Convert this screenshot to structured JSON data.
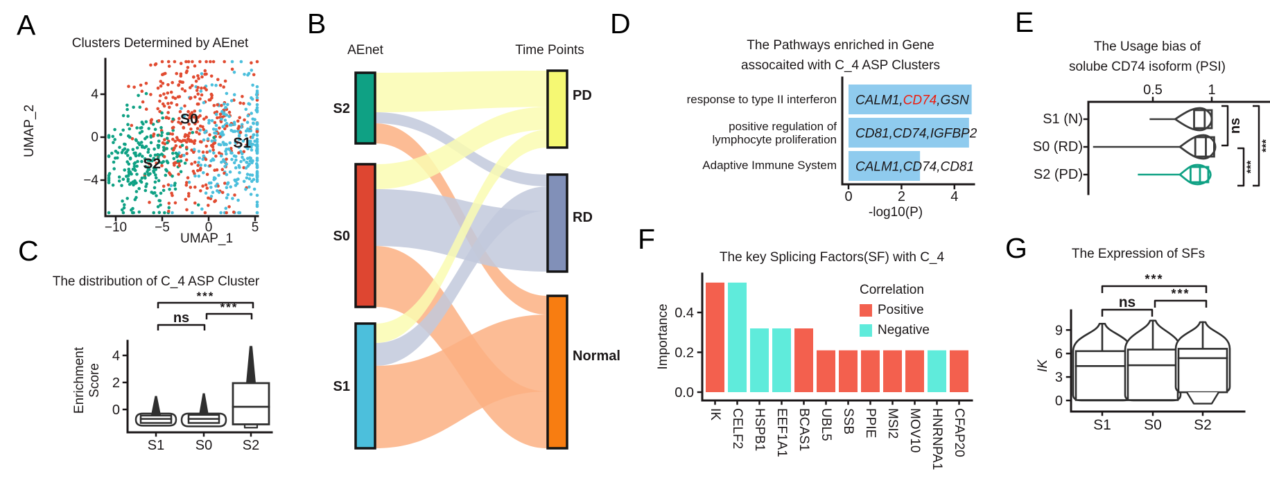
{
  "figure": {
    "background": "#ffffff",
    "ink": "#1b1718"
  },
  "chart_data": [
    {
      "id": "A",
      "type": "scatter",
      "letter": "A",
      "title": "Clusters Determined by AEnet",
      "xlabel": "UMAP_1",
      "ylabel": "UMAP_2",
      "xticks": [
        -10,
        -5,
        0,
        5
      ],
      "yticks": [
        4,
        0,
        -4
      ],
      "xlim": [
        -11.5,
        5.5
      ],
      "ylim": [
        -7.5,
        7.5
      ],
      "clusters": [
        {
          "name": "S0",
          "color": "#E14B31",
          "n": 340,
          "center": [
            -1.6,
            0.85
          ],
          "sd": [
            3.1,
            3.5
          ],
          "label_at": [
            -2.1,
            1.7
          ]
        },
        {
          "name": "S1",
          "color": "#4CBFDC",
          "n": 300,
          "center": [
            2.8,
            -0.9
          ],
          "sd": [
            2.7,
            3.1
          ],
          "label_at": [
            3.6,
            -0.5
          ]
        },
        {
          "name": "S2",
          "color": "#0FA184",
          "n": 240,
          "center": [
            -6.9,
            -2.3
          ],
          "sd": [
            2.2,
            2.6
          ],
          "label_at": [
            -6.1,
            -2.45
          ]
        }
      ]
    },
    {
      "id": "B",
      "type": "sankey",
      "letter": "B",
      "left_header": "AEnet",
      "right_header": "Time Points",
      "left_nodes": [
        {
          "name": "S2",
          "color": "#0FA184"
        },
        {
          "name": "S0",
          "color": "#DE4631"
        },
        {
          "name": "S1",
          "color": "#4CBFDC"
        }
      ],
      "right_nodes": [
        {
          "name": "PD",
          "color": "#F5F873"
        },
        {
          "name": "RD",
          "color": "#8190B8"
        },
        {
          "name": "Normal",
          "color": "#F87D11"
        }
      ],
      "links": [
        {
          "source": "S2",
          "target": "PD",
          "value": 57
        },
        {
          "source": "S2",
          "target": "RD",
          "value": 16
        },
        {
          "source": "S2",
          "target": "Normal",
          "value": 29
        },
        {
          "source": "S0",
          "target": "PD",
          "value": 36
        },
        {
          "source": "S0",
          "target": "RD",
          "value": 82
        },
        {
          "source": "S0",
          "target": "Normal",
          "value": 88
        },
        {
          "source": "S1",
          "target": "PD",
          "value": 28
        },
        {
          "source": "S1",
          "target": "RD",
          "value": 33
        },
        {
          "source": "S1",
          "target": "Normal",
          "value": 119
        }
      ],
      "flow_colors": {
        "PD": "#FAFBB1",
        "RD": "#C2C9DC",
        "Normal": "#FBB083"
      },
      "target_order": {
        "PD": [
          "S2",
          "S0",
          "S1"
        ],
        "RD": [
          "S2",
          "S1",
          "S0"
        ],
        "Normal": [
          "S2",
          "S1",
          "S0"
        ]
      }
    },
    {
      "id": "C",
      "type": "violin-box",
      "letter": "C",
      "title": "The distribution of C_4 ASP Cluster",
      "ylabel_line1": "Enrichment",
      "ylabel_line2": "Score",
      "yticks": [
        4,
        2,
        0
      ],
      "categories": [
        "S1",
        "S0",
        "S2"
      ],
      "stats": [
        {
          "group": "S1",
          "lo": -1.2,
          "hi": -0.3,
          "q1": -1.0,
          "median": -0.7,
          "q3": -0.45,
          "whisker_high": 1.0
        },
        {
          "group": "S0",
          "lo": -1.25,
          "hi": -0.3,
          "q1": -1.0,
          "median": -0.7,
          "q3": -0.4,
          "whisker_high": 1.2
        },
        {
          "group": "S2",
          "lo": -1.35,
          "hi": 1.95,
          "q1": -1.1,
          "median": 0.2,
          "q3": 1.95,
          "whisker_high": 4.7
        }
      ],
      "significance": [
        {
          "label": "***",
          "from": "S1",
          "to": "S2"
        },
        {
          "label": "***",
          "from": "S0",
          "to": "S2"
        },
        {
          "label": "ns",
          "from": "S1",
          "to": "S0"
        }
      ]
    },
    {
      "id": "D",
      "type": "bar-h",
      "letter": "D",
      "title_line1": "The Pathways enriched in Gene",
      "title_line2": "assocaited with C_4 ASP Clusters",
      "xlabel": "-log10(P)",
      "xticks": [
        0,
        2,
        4
      ],
      "bar_color": "#8FCBEE",
      "rows": [
        {
          "label_lines": [
            "response to type II interferon"
          ],
          "value": 4.65,
          "genes": [
            {
              "text": "CALM1,",
              "color": "#1b1718"
            },
            {
              "text": "CD74",
              "color": "#ED1B0C"
            },
            {
              "text": ",GSN",
              "color": "#1b1718"
            }
          ]
        },
        {
          "label_lines": [
            "positive regulation of",
            "lymphocyte proliferation"
          ],
          "value": 4.55,
          "genes": [
            {
              "text": "CD81,CD74,IGFBP2",
              "color": "#1b1718"
            }
          ]
        },
        {
          "label_lines": [
            "Adaptive Immune System"
          ],
          "value": 2.7,
          "genes": [
            {
              "text": "CALM1,CD74,CD81",
              "color": "#1b1718"
            }
          ]
        }
      ]
    },
    {
      "id": "E",
      "type": "violin-h",
      "letter": "E",
      "title_line1": "The Usage bias of",
      "title_line2": "solube CD74 isoform (PSI)",
      "xticks": [
        "0.5",
        "1"
      ],
      "rows": [
        {
          "label": "S1 (N)",
          "color": "#3a3a3a",
          "tail_min": 0.48,
          "body_lo": 0.69,
          "peak": 0.9,
          "body_hi": 1.0,
          "q1": 0.85,
          "median": 0.94,
          "q3": 1.0
        },
        {
          "label": "S0 (RD)",
          "color": "#3a3a3a",
          "tail_min": 0.0,
          "body_lo": 0.73,
          "peak": 0.93,
          "body_hi": 1.03,
          "q1": 0.86,
          "median": 0.95,
          "q3": 1.02
        },
        {
          "label": "S2 (PD)",
          "color": "#0FA184",
          "tail_min": 0.38,
          "body_lo": 0.73,
          "peak": 0.88,
          "body_hi": 0.99,
          "q1": 0.82,
          "median": 0.9,
          "q3": 0.97
        }
      ],
      "significance": [
        {
          "label": "ns",
          "rows": [
            0,
            1
          ]
        },
        {
          "label": "***",
          "rows": [
            1,
            2
          ]
        },
        {
          "label": "***",
          "rows": [
            0,
            2
          ]
        }
      ]
    },
    {
      "id": "F",
      "type": "bar",
      "letter": "F",
      "title": "The key Splicing Factors(SF) with C_4",
      "ylabel": "Importance",
      "yticks": [
        "0.4",
        "0.2",
        "0.0"
      ],
      "legend": {
        "title": "Correlation",
        "items": [
          {
            "label": "Positive",
            "color": "#F3604E"
          },
          {
            "label": "Negative",
            "color": "#5FEBDB"
          }
        ]
      },
      "bars": [
        {
          "gene": "IK",
          "value": 0.55,
          "corr": "Positive"
        },
        {
          "gene": "CELF2",
          "value": 0.55,
          "corr": "Negative"
        },
        {
          "gene": "HSPB1",
          "value": 0.32,
          "corr": "Negative"
        },
        {
          "gene": "EEF1A1",
          "value": 0.32,
          "corr": "Negative"
        },
        {
          "gene": "BCAS1",
          "value": 0.32,
          "corr": "Positive"
        },
        {
          "gene": "UBL5",
          "value": 0.21,
          "corr": "Positive"
        },
        {
          "gene": "SSB",
          "value": 0.21,
          "corr": "Positive"
        },
        {
          "gene": "PPIE",
          "value": 0.21,
          "corr": "Positive"
        },
        {
          "gene": "MSI2",
          "value": 0.21,
          "corr": "Positive"
        },
        {
          "gene": "MOV10",
          "value": 0.21,
          "corr": "Positive"
        },
        {
          "gene": "HNRNPA1",
          "value": 0.21,
          "corr": "Negative"
        },
        {
          "gene": "CFAP20",
          "value": 0.21,
          "corr": "Positive"
        }
      ]
    },
    {
      "id": "G",
      "type": "violin-box",
      "letter": "G",
      "title": "The Expression of SFs",
      "ylabel": "IK",
      "yticks": [
        9,
        6,
        3,
        0
      ],
      "categories": [
        "S1",
        "S0",
        "S2"
      ],
      "stats": [
        {
          "group": "S1",
          "peak": 9.8,
          "q3": 6.3,
          "median": 4.4,
          "q1": 0.05,
          "base_lo": 0
        },
        {
          "group": "S0",
          "peak": 10.2,
          "q3": 6.5,
          "median": 4.5,
          "q1": 0.05,
          "base_lo": 0
        },
        {
          "group": "S2",
          "peak": 10.0,
          "q3": 6.6,
          "median": 5.4,
          "q1": 1.05,
          "base_lo": -0.4
        }
      ],
      "significance": [
        {
          "label": "***",
          "from": "S1",
          "to": "S2"
        },
        {
          "label": "***",
          "from": "S0",
          "to": "S2"
        },
        {
          "label": "ns",
          "from": "S1",
          "to": "S0"
        }
      ]
    }
  ]
}
